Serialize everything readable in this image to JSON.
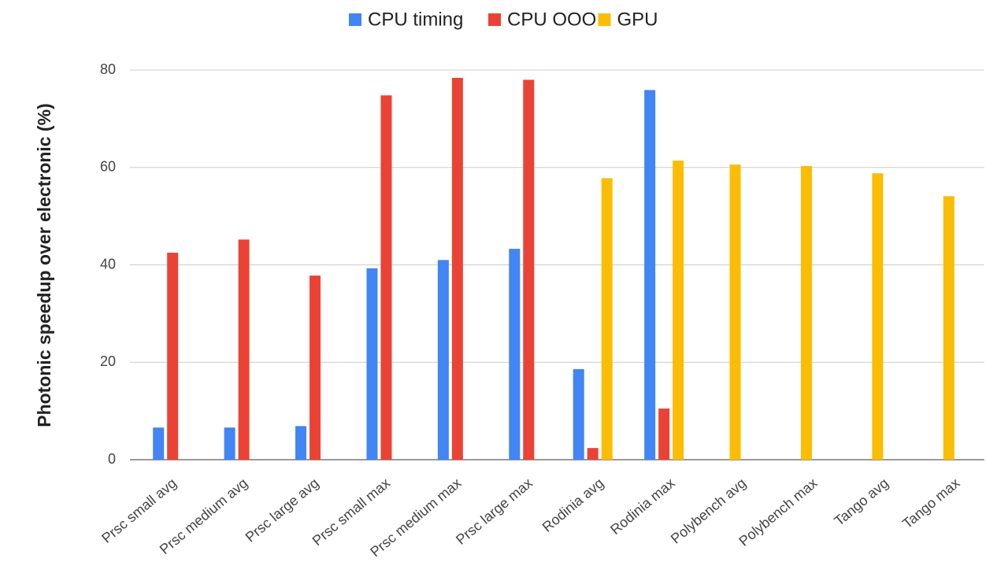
{
  "chart_data": {
    "type": "bar",
    "y_label": "Photonic speedup over electronic (%)",
    "categories": [
      "Prsc small avg",
      "Prsc medium avg",
      "Prsc large avg",
      "Prsc small max",
      "Prsc medium max",
      "Prsc large max",
      "Rodinia avg",
      "Rodinia max",
      "Polybench avg",
      "Polybench max",
      "Tango avg",
      "Tango max"
    ],
    "series": [
      {
        "name": "CPU timing",
        "color": "#4285f4",
        "values": [
          6.6,
          6.6,
          6.9,
          39.3,
          41.0,
          43.3,
          18.6,
          75.9,
          null,
          null,
          null,
          null
        ]
      },
      {
        "name": "CPU OOO",
        "color": "#ea4335",
        "values": [
          42.5,
          45.2,
          37.8,
          74.8,
          78.4,
          78.0,
          2.4,
          10.5,
          null,
          null,
          null,
          null
        ]
      },
      {
        "name": "GPU",
        "color": "#fbbc04",
        "values": [
          null,
          null,
          null,
          null,
          null,
          null,
          57.8,
          61.4,
          60.6,
          60.3,
          58.8,
          54.1
        ]
      }
    ],
    "ylim": [
      0,
      80
    ],
    "yticks": [
      0,
      20,
      40,
      60,
      80
    ],
    "grid": true,
    "legend": "top"
  }
}
